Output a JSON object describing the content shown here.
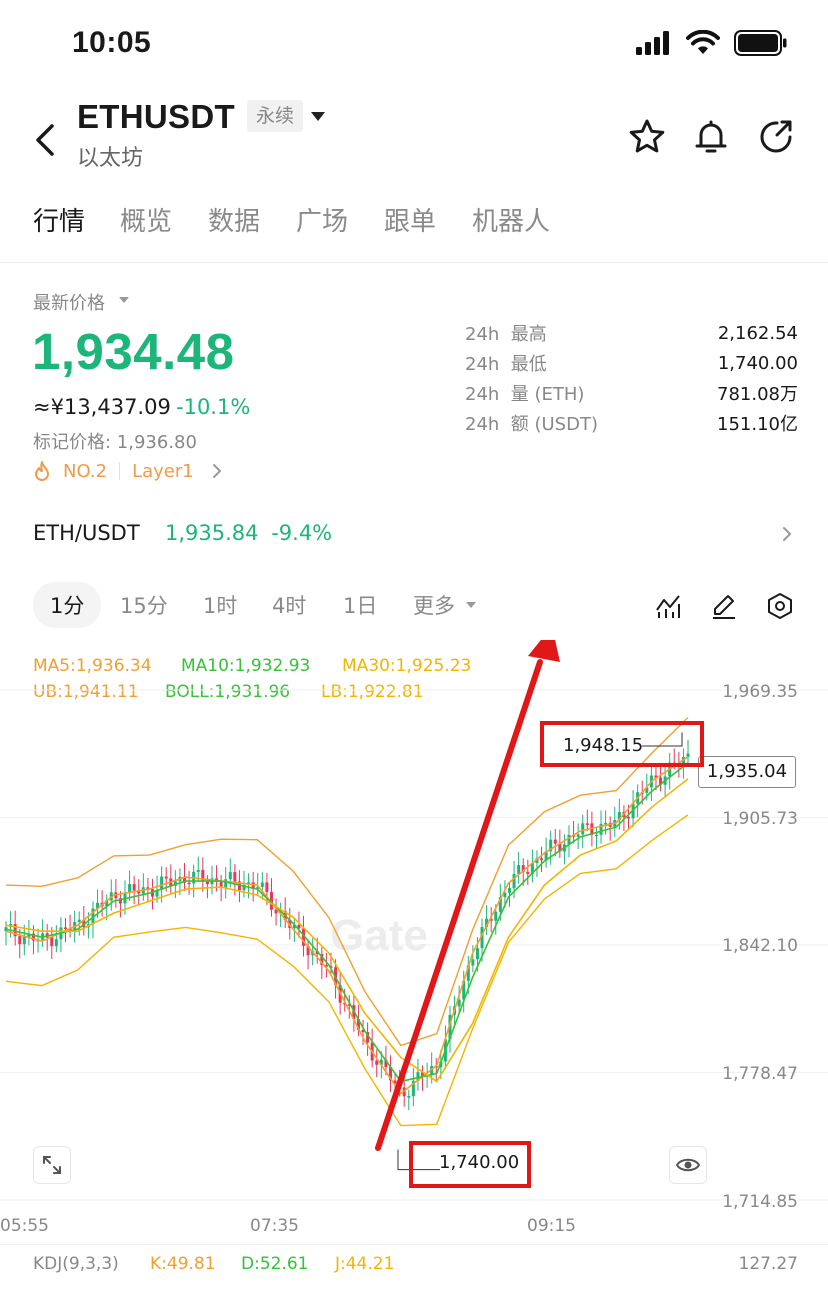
{
  "status": {
    "time": "10:05"
  },
  "header": {
    "pair": "ETHUSDT",
    "contract_tag": "永续",
    "subtitle": "以太坊"
  },
  "tabs": [
    "行情",
    "概览",
    "数据",
    "广场",
    "跟单",
    "机器人"
  ],
  "price": {
    "label": "最新价格",
    "last": "1,934.48",
    "cny": "≈¥13,437.09",
    "change": "-10.1%",
    "mark": "标记价格: 1,936.80",
    "rank_tag": "NO.2",
    "sector_tag": "Layer1"
  },
  "stats": [
    {
      "label": "24h  最高",
      "value": "2,162.54"
    },
    {
      "label": "24h  最低",
      "value": "1,740.00"
    },
    {
      "label": "24h  量 (ETH)",
      "value": "781.08万"
    },
    {
      "label": "24h  额 (USDT)",
      "value": "151.10亿"
    }
  ],
  "spot": {
    "pair": "ETH/USDT",
    "price": "1,935.84",
    "change": "-9.4%"
  },
  "intervals": [
    "1分",
    "15分",
    "1时",
    "4时",
    "1日",
    "更多"
  ],
  "indicators": {
    "ma5": "MA5:1,936.34",
    "ma10": "MA10:1,932.93",
    "ma30": "MA30:1,925.23",
    "ub": "UB:1,941.11",
    "boll": "BOLL:1,931.96",
    "lb": "LB:1,922.81"
  },
  "chart": {
    "y_ticks": [
      "1,969.35",
      "1,905.73",
      "1,842.10",
      "1,778.47",
      "1,714.85"
    ],
    "x_ticks": [
      "05:55",
      "07:35",
      "09:15"
    ],
    "current_price": "1,935.04",
    "high_annotation": "1,948.15",
    "low_annotation": "1,740.00",
    "watermark": "Gate"
  },
  "kdj": {
    "label": "KDJ(9,3,3)",
    "k": "K:49.81",
    "d": "D:52.61",
    "j": "J:44.21",
    "scale": "127.27"
  },
  "colors": {
    "up": "#1cb57a",
    "down": "#e8375a",
    "ma5": "#f0a030",
    "ma10": "#36c236",
    "ma30": "#f2b500",
    "annotation": "#e11818"
  },
  "chart_data": {
    "type": "line",
    "title": "",
    "xlabel": "",
    "ylabel": "",
    "x_ticks": [
      "05:55",
      "07:35",
      "09:15"
    ],
    "ylim": [
      1714.85,
      1969.35
    ],
    "series": [
      {
        "name": "MA5",
        "values": [
          1849,
          1844,
          1852,
          1867,
          1870,
          1876,
          1874,
          1872,
          1850,
          1829,
          1794,
          1768,
          1782,
          1838,
          1873,
          1888,
          1899,
          1903,
          1924,
          1936
        ]
      },
      {
        "name": "MA10",
        "values": [
          1850,
          1846,
          1850,
          1864,
          1868,
          1874,
          1874,
          1870,
          1853,
          1832,
          1799,
          1774,
          1778,
          1826,
          1866,
          1884,
          1896,
          1901,
          1919,
          1933
        ]
      },
      {
        "name": "MA30",
        "values": [
          1852,
          1849,
          1849,
          1858,
          1864,
          1870,
          1871,
          1867,
          1856,
          1838,
          1808,
          1786,
          1774,
          1803,
          1846,
          1872,
          1887,
          1894,
          1911,
          1925
        ]
      }
    ],
    "high": 1948.15,
    "low": 1740.0,
    "last": 1935.04
  }
}
